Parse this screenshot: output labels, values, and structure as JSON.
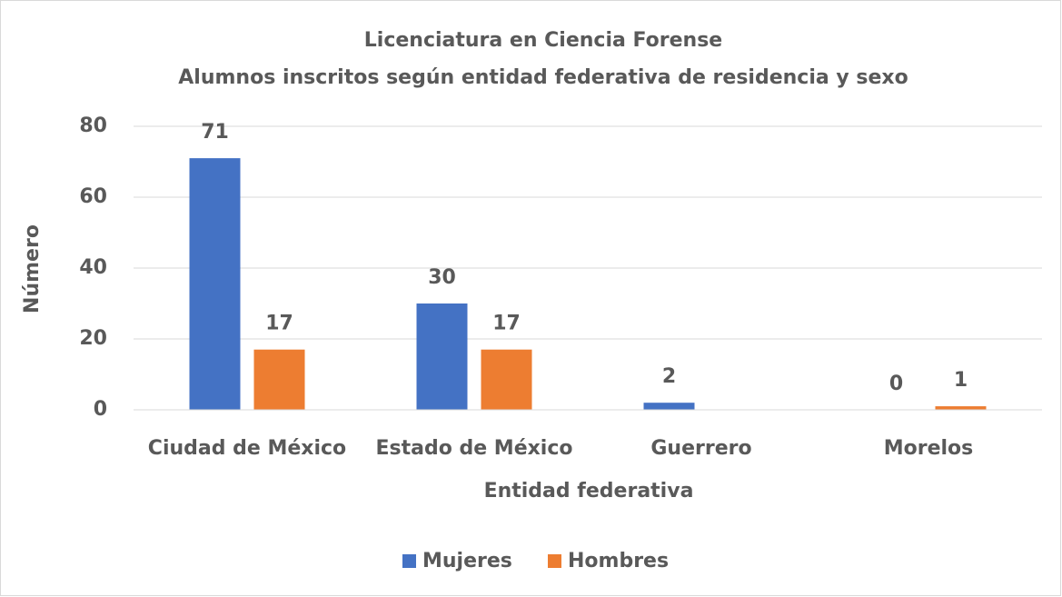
{
  "chart_data": {
    "type": "bar",
    "title": "Licenciatura en Ciencia Forense",
    "subtitle": "Alumnos inscritos según entidad federativa de residencia y sexo",
    "x_label": "Entidad federativa",
    "y_label": "Número",
    "categories": [
      "Ciudad de México",
      "Estado de México",
      "Guerrero",
      "Morelos"
    ],
    "series": [
      {
        "name": "Mujeres",
        "color": "#4472c4",
        "values": [
          71,
          30,
          2,
          0
        ]
      },
      {
        "name": "Hombres",
        "color": "#ed7d31",
        "values": [
          17,
          17,
          null,
          1
        ]
      }
    ],
    "ylim": [
      0,
      80
    ],
    "yticks": [
      0,
      20,
      40,
      60,
      80
    ],
    "grid": true,
    "legend": "bottom"
  }
}
